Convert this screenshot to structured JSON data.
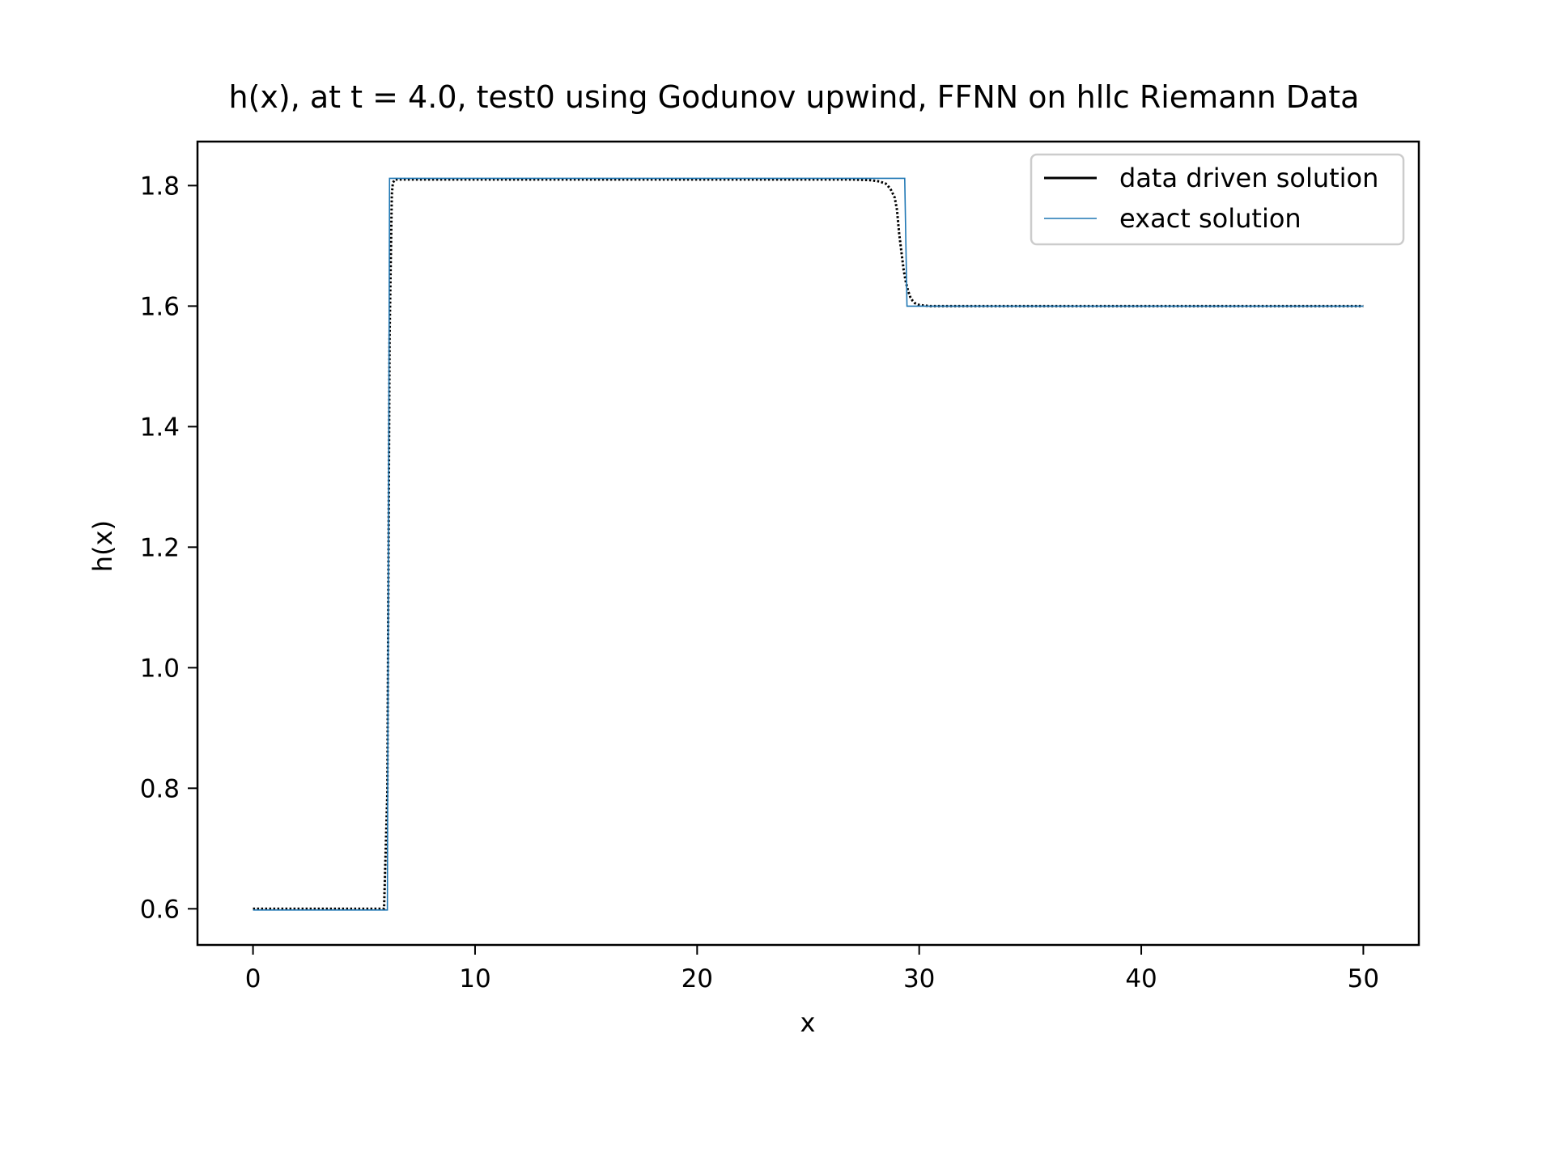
{
  "chart_data": {
    "type": "line",
    "title": "h(x), at t = 4.0, test0 using Godunov upwind, FFNN on hllc Riemann Data",
    "xlabel": "x",
    "ylabel": "h(x)",
    "xlim": [
      -2.5,
      52.5
    ],
    "ylim": [
      0.54,
      1.873
    ],
    "xticks": [
      0,
      10,
      20,
      30,
      40,
      50
    ],
    "yticks": [
      0.6,
      0.8,
      1.0,
      1.2,
      1.4,
      1.6,
      1.8
    ],
    "xtick_labels": [
      "0",
      "10",
      "20",
      "30",
      "40",
      "50"
    ],
    "ytick_labels": [
      "0.6",
      "0.8",
      "1.0",
      "1.2",
      "1.4",
      "1.6",
      "1.8"
    ],
    "grid": false,
    "legend_position": "top-right",
    "legend": [
      "data driven solution",
      "exact solution"
    ],
    "series": [
      {
        "name": "data driven solution",
        "color": "#000000",
        "style": "dotted",
        "x": [
          0,
          2,
          4,
          5.9,
          6.05,
          6.15,
          6.25,
          6.3,
          6.4,
          6.5,
          8,
          12,
          16,
          20,
          24,
          27,
          27.8,
          28.2,
          28.5,
          28.7,
          28.9,
          29.0,
          29.1,
          29.2,
          29.3,
          29.4,
          29.5,
          29.6,
          29.7,
          29.8,
          30.0,
          30.2,
          30.5,
          31,
          35,
          40,
          45,
          50
        ],
        "values": [
          0.6,
          0.6,
          0.6,
          0.6,
          0.795,
          1.545,
          1.785,
          1.805,
          1.81,
          1.81,
          1.81,
          1.81,
          1.81,
          1.81,
          1.81,
          1.81,
          1.809,
          1.807,
          1.803,
          1.795,
          1.78,
          1.76,
          1.72,
          1.69,
          1.66,
          1.64,
          1.625,
          1.615,
          1.609,
          1.605,
          1.602,
          1.601,
          1.6,
          1.6,
          1.6,
          1.6,
          1.6,
          1.6
        ]
      },
      {
        "name": "exact solution",
        "color": "#1f77b4",
        "style": "solid",
        "x": [
          0,
          6.05,
          6.15,
          6.2,
          29.35,
          29.45,
          50
        ],
        "values": [
          0.598,
          0.598,
          1.812,
          1.812,
          1.812,
          1.6,
          1.6
        ]
      }
    ]
  }
}
